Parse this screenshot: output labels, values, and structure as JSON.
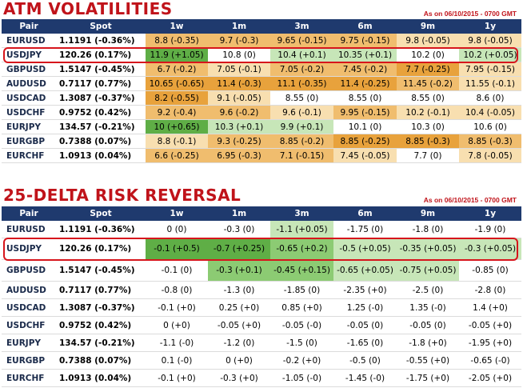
{
  "atm": {
    "title": "ATM VOLATILITIES",
    "as_of": "As on 06/10/2015 - 0700 GMT",
    "headers": [
      "Pair",
      "Spot",
      "1w",
      "1m",
      "3m",
      "6m",
      "9m",
      "1y"
    ],
    "rows": [
      {
        "pair": "EURUSD",
        "spot": "1.1191 (-0.36%)",
        "cells": [
          "8.8 (-0.35)",
          "9.7 (-0.3)",
          "9.65 (-0.15)",
          "9.75 (-0.15)",
          "9.8 (-0.05)",
          "9.8 (-0.05)"
        ]
      },
      {
        "pair": "USDJPY",
        "spot": "120.26 (0.17%)",
        "cells": [
          "11.9 (+1.05)",
          "10.8 (0)",
          "10.4 (+0.1)",
          "10.35 (+0.1)",
          "10.2 (0)",
          "10.2 (+0.05)"
        ]
      },
      {
        "pair": "GBPUSD",
        "spot": "1.5147 (-0.45%)",
        "cells": [
          "6.7 (-0.2)",
          "7.05 (-0.1)",
          "7.05 (-0.2)",
          "7.45 (-0.2)",
          "7.7 (-0.25)",
          "7.95 (-0.15)"
        ]
      },
      {
        "pair": "AUDUSD",
        "spot": "0.7117 (0.77%)",
        "cells": [
          "10.65 (-0.65)",
          "11.4 (-0.3)",
          "11.1 (-0.35)",
          "11.4 (-0.25)",
          "11.45 (-0.2)",
          "11.55 (-0.1)"
        ]
      },
      {
        "pair": "USDCAD",
        "spot": "1.3087 (-0.37%)",
        "cells": [
          "8.2 (-0.55)",
          "9.1 (-0.05)",
          "8.55 (0)",
          "8.55 (0)",
          "8.55 (0)",
          "8.6 (0)"
        ]
      },
      {
        "pair": "USDCHF",
        "spot": "0.9752 (0.42%)",
        "cells": [
          "9.2 (-0.4)",
          "9.6 (-0.2)",
          "9.6 (-0.1)",
          "9.95 (-0.15)",
          "10.2 (-0.1)",
          "10.4 (-0.05)"
        ]
      },
      {
        "pair": "EURJPY",
        "spot": "134.57 (-0.21%)",
        "cells": [
          "10 (+0.65)",
          "10.3 (+0.1)",
          "9.9 (+0.1)",
          "10.1 (0)",
          "10.3 (0)",
          "10.6 (0)"
        ]
      },
      {
        "pair": "EURGBP",
        "spot": "0.7388 (0.07%)",
        "cells": [
          "8.8 (-0.1)",
          "9.3 (-0.25)",
          "8.85 (-0.2)",
          "8.85 (-0.25)",
          "8.85 (-0.3)",
          "8.85 (-0.3)"
        ]
      },
      {
        "pair": "EURCHF",
        "spot": "1.0913 (0.04%)",
        "cells": [
          "6.6 (-0.25)",
          "6.95 (-0.3)",
          "7.1 (-0.15)",
          "7.45 (-0.05)",
          "7.7 (0)",
          "7.8 (-0.05)"
        ]
      }
    ]
  },
  "rr": {
    "title": "25-DELTA RISK REVERSAL",
    "as_of": "As on 06/10/2015 - 0700 GMT",
    "headers": [
      "Pair",
      "Spot",
      "1w",
      "1m",
      "3m",
      "6m",
      "9m",
      "1y"
    ],
    "rows": [
      {
        "pair": "EURUSD",
        "spot": "1.1191 (-0.36%)",
        "cells": [
          "0 (0)",
          "-0.3 (0)",
          "-1.1 (+0.05)",
          "-1.75 (0)",
          "-1.8 (0)",
          "-1.9 (0)"
        ]
      },
      {
        "pair": "USDJPY",
        "spot": "120.26 (0.17%)",
        "cells": [
          "-0.1 (+0.5)",
          "-0.7 (+0.25)",
          "-0.65 (+0.2)",
          "-0.5 (+0.05)",
          "-0.35 (+0.05)",
          "-0.3 (+0.05)"
        ]
      },
      {
        "pair": "GBPUSD",
        "spot": "1.5147 (-0.45%)",
        "cells": [
          "-0.1 (0)",
          "-0.3 (+0.1)",
          "-0.45 (+0.15)",
          "-0.65 (+0.05)",
          "-0.75 (+0.05)",
          "-0.85 (0)"
        ]
      },
      {
        "pair": "AUDUSD",
        "spot": "0.7117 (0.77%)",
        "cells": [
          "-0.8 (0)",
          "-1.3 (0)",
          "-1.85 (0)",
          "-2.35 (+0)",
          "-2.5 (0)",
          "-2.8 (0)"
        ]
      },
      {
        "pair": "USDCAD",
        "spot": "1.3087 (-0.37%)",
        "cells": [
          "-0.1 (+0)",
          "0.25 (+0)",
          "0.85 (+0)",
          "1.25 (-0)",
          "1.35 (-0)",
          "1.4 (+0)"
        ]
      },
      {
        "pair": "USDCHF",
        "spot": "0.9752 (0.42%)",
        "cells": [
          "0 (+0)",
          "-0.05 (+0)",
          "-0.05 (-0)",
          "-0.05 (0)",
          "-0.05 (0)",
          "-0.05 (+0)"
        ]
      },
      {
        "pair": "EURJPY",
        "spot": "134.57 (-0.21%)",
        "cells": [
          "-1.1 (-0)",
          "-1.2 (0)",
          "-1.5 (0)",
          "-1.65 (0)",
          "-1.8 (+0)",
          "-1.95 (+0)"
        ]
      },
      {
        "pair": "EURGBP",
        "spot": "0.7388 (0.07%)",
        "cells": [
          "0.1 (-0)",
          "0 (+0)",
          "-0.2 (+0)",
          "-0.5 (0)",
          "-0.55 (+0)",
          "-0.65 (-0)"
        ]
      },
      {
        "pair": "EURCHF",
        "spot": "1.0913 (0.04%)",
        "cells": [
          "-0.1 (+0)",
          "-0.3 (+0)",
          "-1.05 (-0)",
          "-1.45 (-0)",
          "-1.75 (+0)",
          "-2.05 (+0)"
        ]
      }
    ]
  },
  "colors": {
    "header_bg": "#1f3a6e",
    "title_red": "#c0131a",
    "highlight_border": "#d7151c",
    "orange_strong": "#e8a23c",
    "orange_mid": "#f0bd6e",
    "orange_light": "#f8dfb0",
    "green_strong": "#5fae46",
    "green_mid": "#8ccb73",
    "green_light": "#c7e6b8",
    "white": "#ffffff"
  },
  "atm_cell_colors": [
    [
      "orange_mid",
      "orange_mid",
      "orange_mid",
      "orange_mid",
      "orange_light",
      "orange_light"
    ],
    [
      "green_strong",
      "white",
      "green_light",
      "green_light",
      "white",
      "green_light"
    ],
    [
      "orange_mid",
      "orange_light",
      "orange_mid",
      "orange_mid",
      "orange_strong",
      "orange_light"
    ],
    [
      "orange_strong",
      "orange_strong",
      "orange_strong",
      "orange_strong",
      "orange_mid",
      "orange_light"
    ],
    [
      "orange_strong",
      "orange_light",
      "white",
      "white",
      "white",
      "white"
    ],
    [
      "orange_mid",
      "orange_mid",
      "orange_light",
      "orange_mid",
      "orange_light",
      "orange_light"
    ],
    [
      "green_strong",
      "green_light",
      "green_light",
      "white",
      "white",
      "white"
    ],
    [
      "orange_light",
      "orange_mid",
      "orange_mid",
      "orange_strong",
      "orange_strong",
      "orange_mid"
    ],
    [
      "orange_mid",
      "orange_mid",
      "orange_mid",
      "orange_light",
      "white",
      "orange_light"
    ]
  ],
  "rr_cell_colors": [
    [
      "white",
      "white",
      "green_light",
      "white",
      "white",
      "white"
    ],
    [
      "green_strong",
      "green_strong",
      "green_mid",
      "green_light",
      "green_light",
      "green_light"
    ],
    [
      "white",
      "green_mid",
      "green_mid",
      "green_light",
      "green_light",
      "white"
    ],
    [
      "white",
      "white",
      "white",
      "white",
      "white",
      "white"
    ],
    [
      "white",
      "white",
      "white",
      "white",
      "white",
      "white"
    ],
    [
      "white",
      "white",
      "white",
      "white",
      "white",
      "white"
    ],
    [
      "white",
      "white",
      "white",
      "white",
      "white",
      "white"
    ],
    [
      "white",
      "white",
      "white",
      "white",
      "white",
      "white"
    ],
    [
      "white",
      "white",
      "white",
      "white",
      "white",
      "white"
    ]
  ]
}
